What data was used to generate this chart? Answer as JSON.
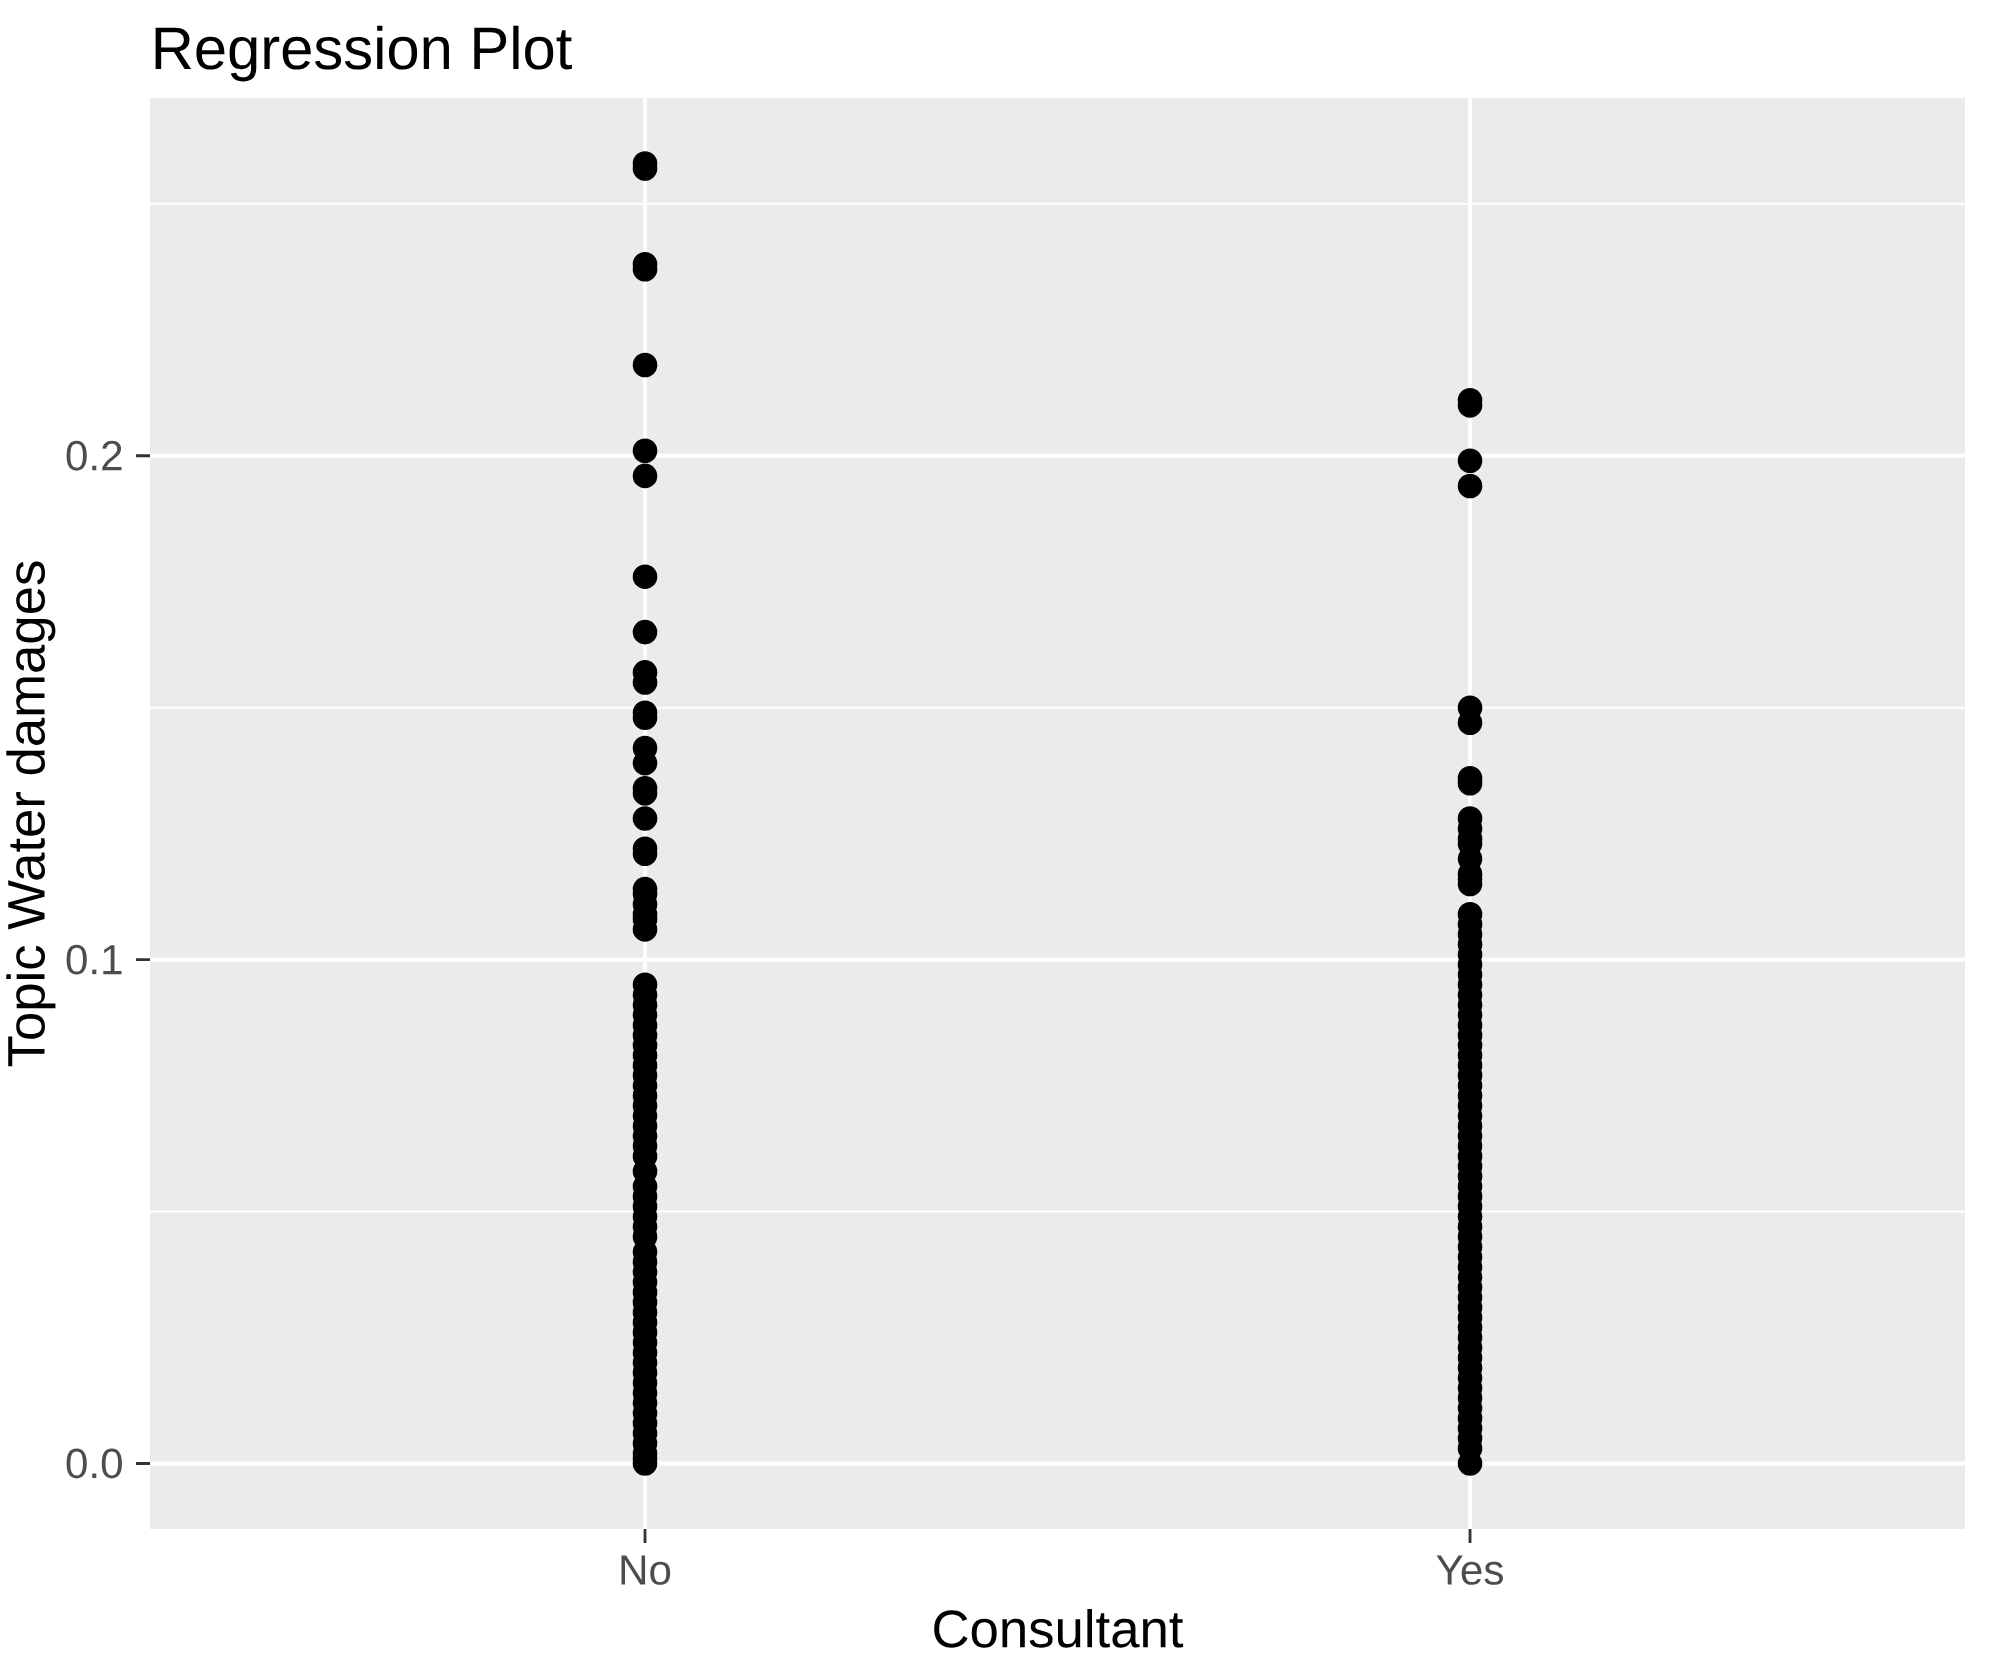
{
  "chart_data": {
    "type": "scatter",
    "title": "Regression Plot",
    "xlabel": "Consultant",
    "ylabel": "Topic Water damages",
    "categories": [
      "No",
      "Yes"
    ],
    "series": [
      {
        "color": "#000000",
        "x": [
          "No",
          "No",
          "No",
          "No",
          "No",
          "No",
          "No",
          "No",
          "No",
          "No",
          "No",
          "No",
          "No",
          "No",
          "No",
          "No",
          "No",
          "No",
          "No",
          "No",
          "No",
          "No",
          "No",
          "No",
          "No",
          "No",
          "No",
          "No",
          "No",
          "No",
          "No",
          "No",
          "No",
          "No",
          "No",
          "No",
          "No",
          "No",
          "No",
          "No",
          "No",
          "No",
          "No",
          "No",
          "No",
          "No",
          "No",
          "No",
          "No",
          "No",
          "No",
          "No",
          "No",
          "No",
          "No",
          "No",
          "No",
          "No",
          "No",
          "No",
          "No",
          "No",
          "No",
          "No",
          "No",
          "No",
          "No",
          "No",
          "No",
          "No",
          "No",
          "No",
          "No",
          "No"
        ],
        "values": [
          0.258,
          0.257,
          0.238,
          0.237,
          0.218,
          0.201,
          0.196,
          0.176,
          0.165,
          0.157,
          0.155,
          0.149,
          0.148,
          0.142,
          0.139,
          0.134,
          0.133,
          0.128,
          0.122,
          0.121,
          0.114,
          0.113,
          0.111,
          0.109,
          0.108,
          0.106,
          0.095,
          0.093,
          0.091,
          0.089,
          0.087,
          0.085,
          0.083,
          0.081,
          0.079,
          0.077,
          0.075,
          0.073,
          0.071,
          0.069,
          0.067,
          0.065,
          0.063,
          0.061,
          0.058,
          0.055,
          0.053,
          0.051,
          0.049,
          0.047,
          0.045,
          0.042,
          0.04,
          0.038,
          0.036,
          0.034,
          0.032,
          0.03,
          0.028,
          0.026,
          0.024,
          0.022,
          0.02,
          0.018,
          0.016,
          0.014,
          0.012,
          0.01,
          0.008,
          0.006,
          0.004,
          0.002,
          0.001,
          0.0
        ]
      },
      {
        "color": "#000000",
        "x": [
          "Yes",
          "Yes",
          "Yes",
          "Yes",
          "Yes",
          "Yes",
          "Yes",
          "Yes",
          "Yes",
          "Yes",
          "Yes",
          "Yes",
          "Yes",
          "Yes",
          "Yes",
          "Yes",
          "Yes",
          "Yes",
          "Yes",
          "Yes",
          "Yes",
          "Yes",
          "Yes",
          "Yes",
          "Yes",
          "Yes",
          "Yes",
          "Yes",
          "Yes",
          "Yes",
          "Yes",
          "Yes",
          "Yes",
          "Yes",
          "Yes",
          "Yes",
          "Yes",
          "Yes",
          "Yes",
          "Yes",
          "Yes",
          "Yes",
          "Yes",
          "Yes",
          "Yes",
          "Yes",
          "Yes",
          "Yes",
          "Yes",
          "Yes",
          "Yes",
          "Yes",
          "Yes",
          "Yes",
          "Yes",
          "Yes",
          "Yes",
          "Yes",
          "Yes",
          "Yes",
          "Yes",
          "Yes",
          "Yes",
          "Yes",
          "Yes",
          "Yes",
          "Yes",
          "Yes",
          "Yes",
          "Yes",
          "Yes"
        ],
        "values": [
          0.211,
          0.21,
          0.199,
          0.194,
          0.15,
          0.147,
          0.136,
          0.135,
          0.128,
          0.126,
          0.124,
          0.123,
          0.12,
          0.117,
          0.116,
          0.115,
          0.109,
          0.107,
          0.105,
          0.103,
          0.101,
          0.099,
          0.097,
          0.095,
          0.093,
          0.091,
          0.089,
          0.087,
          0.085,
          0.083,
          0.081,
          0.079,
          0.077,
          0.075,
          0.073,
          0.071,
          0.069,
          0.067,
          0.065,
          0.063,
          0.061,
          0.059,
          0.057,
          0.055,
          0.053,
          0.051,
          0.049,
          0.047,
          0.045,
          0.043,
          0.041,
          0.039,
          0.037,
          0.035,
          0.033,
          0.031,
          0.029,
          0.027,
          0.025,
          0.023,
          0.021,
          0.019,
          0.017,
          0.015,
          0.013,
          0.011,
          0.009,
          0.007,
          0.005,
          0.003,
          0.0
        ]
      }
    ],
    "ylim": [
      -0.013,
      0.271
    ],
    "yticks": [
      {
        "value": 0,
        "label": "0.0"
      },
      {
        "value": 0.05,
        "label": null
      },
      {
        "value": 0.1,
        "label": "0.1"
      },
      {
        "value": 0.15,
        "label": null
      },
      {
        "value": 0.2,
        "label": "0.2"
      },
      {
        "value": 0.25,
        "label": null
      }
    ],
    "grid": true,
    "marker": "circle"
  }
}
